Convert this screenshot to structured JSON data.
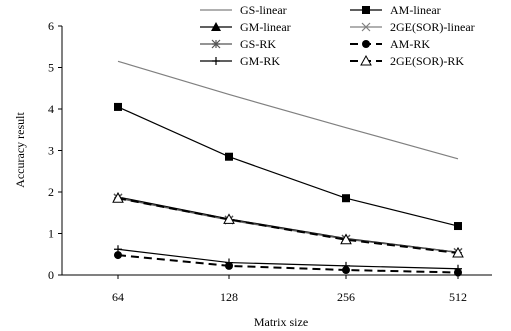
{
  "chart_data": {
    "type": "line",
    "title": "",
    "xlabel": "Matrix size",
    "ylabel": "Accuracy result",
    "categories": [
      "64",
      "128",
      "256",
      "512"
    ],
    "ylim": [
      0,
      6
    ],
    "yticks": [
      "0",
      "1",
      "2",
      "3",
      "4",
      "5",
      "6"
    ],
    "grid": false,
    "legend_placement": "top-right",
    "series": [
      {
        "name": "GS-linear",
        "values": [
          5.15,
          4.35,
          3.55,
          2.8
        ],
        "marker": "none",
        "dash": "solid",
        "color": "#808080"
      },
      {
        "name": "AM-linear",
        "values": [
          4.05,
          2.85,
          1.85,
          1.18
        ],
        "marker": "square",
        "dash": "solid",
        "color": "#000000"
      },
      {
        "name": "GM-linear",
        "values": [
          1.88,
          1.35,
          0.88,
          0.55
        ],
        "marker": "triangle",
        "dash": "solid",
        "color": "#000000"
      },
      {
        "name": "2GE(SOR)-linear",
        "values": [
          1.85,
          1.32,
          0.86,
          0.55
        ],
        "marker": "x",
        "dash": "solid",
        "color": "#808080"
      },
      {
        "name": "GS-RK",
        "values": [
          1.86,
          1.33,
          0.87,
          0.54
        ],
        "marker": "asterisk",
        "dash": "solid",
        "color": "#555555"
      },
      {
        "name": "AM-RK",
        "values": [
          0.48,
          0.22,
          0.12,
          0.06
        ],
        "marker": "circle",
        "dash": "dashed",
        "color": "#000000"
      },
      {
        "name": "GM-RK",
        "values": [
          0.62,
          0.3,
          0.22,
          0.15
        ],
        "marker": "plus",
        "dash": "solid",
        "color": "#000000"
      },
      {
        "name": "2GE(SOR)-RK",
        "values": [
          1.85,
          1.34,
          0.85,
          0.53
        ],
        "marker": "triangle-open",
        "dash": "dashed",
        "color": "#000000"
      }
    ]
  }
}
